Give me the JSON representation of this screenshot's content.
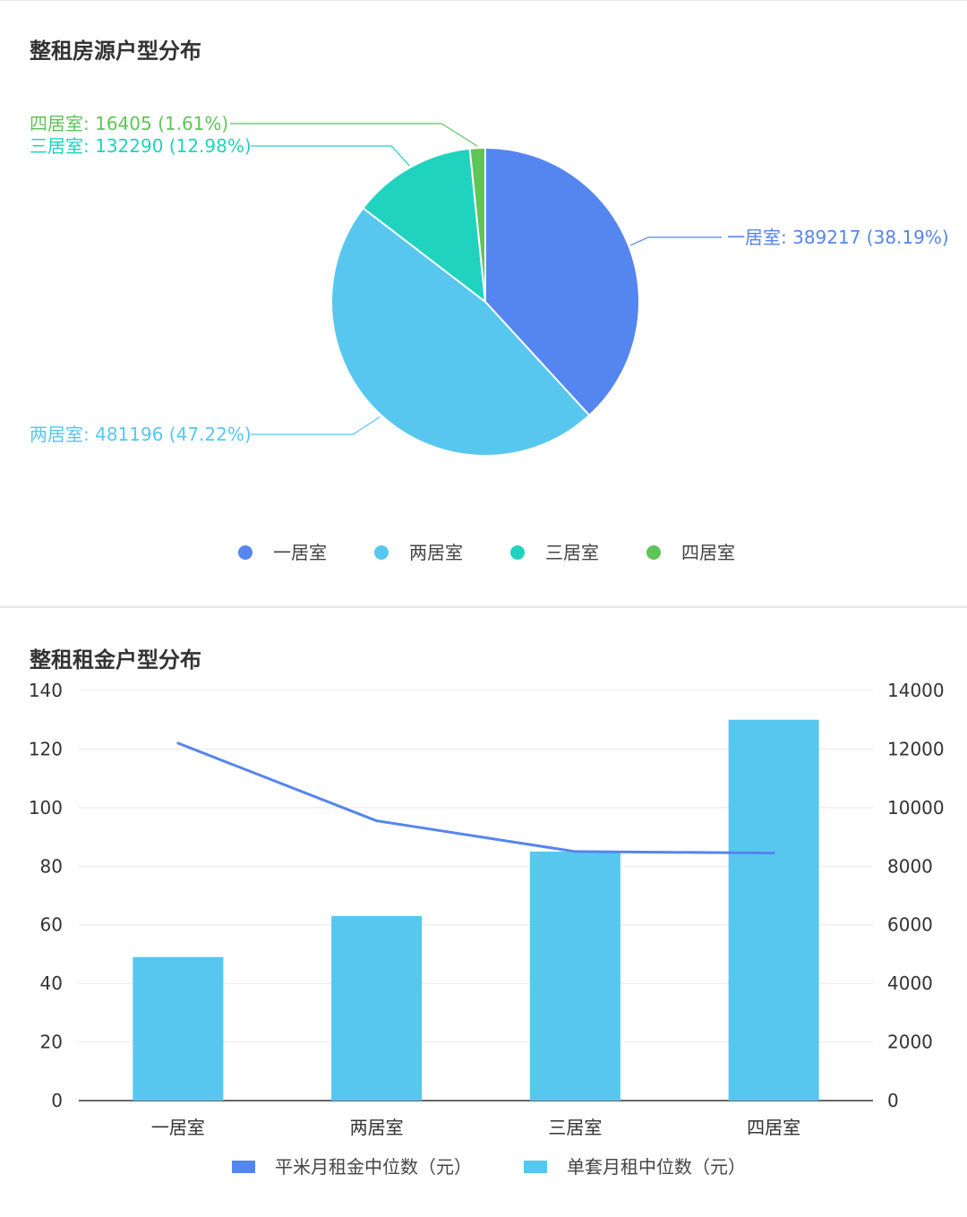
{
  "colors": {
    "one": "#5585EE",
    "two": "#57C7EF",
    "three": "#20D3BE",
    "four": "#5EC557",
    "bar": "#57C7EF",
    "line": "#5585EE"
  },
  "pie_card": {
    "title": "整租房源户型分布"
  },
  "combo_card": {
    "title": "整租租金户型分布"
  },
  "chart_data": [
    {
      "type": "pie",
      "title": "整租房源户型分布",
      "slices": [
        {
          "name": "一居室",
          "value": 389217,
          "percent": "38.19%",
          "label": "一居室: 389217 (38.19%)"
        },
        {
          "name": "两居室",
          "value": 481196,
          "percent": "47.22%",
          "label": "两居室: 481196 (47.22%)"
        },
        {
          "name": "三居室",
          "value": 132290,
          "percent": "12.98%",
          "label": "三居室: 132290 (12.98%)"
        },
        {
          "name": "四居室",
          "value": 16405,
          "percent": "1.61%",
          "label": "四居室: 16405 (1.61%)"
        }
      ],
      "legend": [
        "一居室",
        "两居室",
        "三居室",
        "四居室"
      ],
      "legend_position": "bottom"
    },
    {
      "type": "bar",
      "title": "整租租金户型分布",
      "categories": [
        "一居室",
        "两居室",
        "三居室",
        "四居室"
      ],
      "series": [
        {
          "name": "平米月租金中位数（元）",
          "type": "line",
          "axis": "left",
          "values": [
            122,
            95.5,
            85,
            84.5
          ]
        },
        {
          "name": "单套月租中位数（元）",
          "type": "bar",
          "axis": "right",
          "values": [
            4900,
            6300,
            8500,
            13000
          ]
        }
      ],
      "y_left": {
        "ylim": [
          0,
          140
        ],
        "ticks": [
          "0",
          "20",
          "40",
          "60",
          "80",
          "100",
          "120",
          "140"
        ]
      },
      "y_right": {
        "ylim": [
          0,
          14000
        ],
        "ticks": [
          "0",
          "2000",
          "4000",
          "6000",
          "8000",
          "10000",
          "12000",
          "14000"
        ]
      },
      "grid": true,
      "legend_position": "bottom"
    }
  ]
}
